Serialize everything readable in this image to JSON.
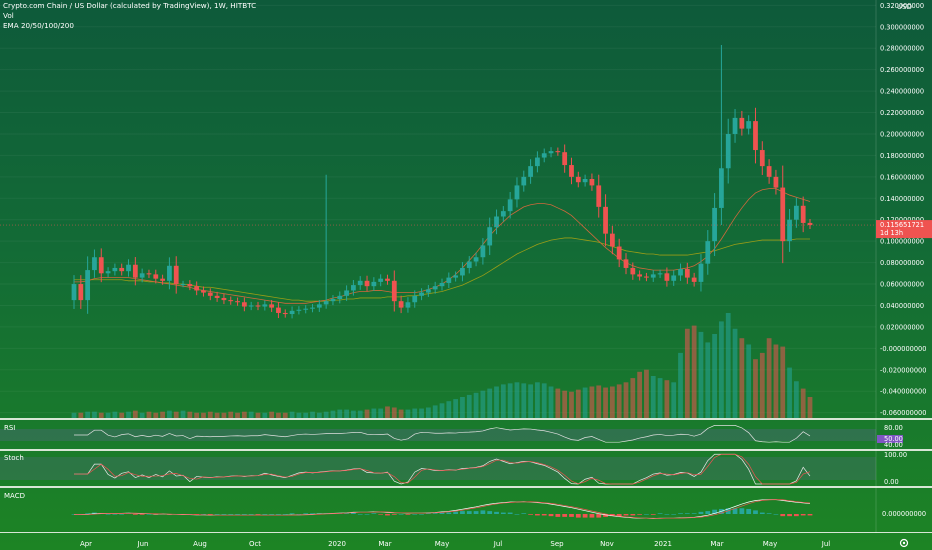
{
  "header": {
    "symbol_line": "Crypto.com Chain / US Dollar (calculated by TradingView), 1W, HITBTC",
    "vol_label": "Vol",
    "ema_label": "EMA 20/50/100/200"
  },
  "price_axis": {
    "currency": "USD",
    "labels": [
      "0.320000000",
      "0.300000000",
      "0.280000000",
      "0.260000000",
      "0.240000000",
      "0.220000000",
      "0.200000000",
      "0.180000000",
      "0.160000000",
      "0.140000000",
      "0.120000000",
      "0.100000000",
      "0.080000000",
      "0.060000000",
      "0.040000000",
      "0.020000000",
      "-0.000000000",
      "-0.020000000",
      "-0.040000000",
      "-0.060000000"
    ],
    "current_price_label": "0.115651721",
    "countdown_label": "1d 13h"
  },
  "panes": {
    "rsi": {
      "label": "RSI",
      "ticks": [
        "80.00",
        "50.00",
        "40.00"
      ]
    },
    "stoch": {
      "label": "Stoch",
      "ticks": [
        "100.00",
        "0.00"
      ]
    },
    "macd": {
      "label": "MACD",
      "ticks": [
        "0.000000000"
      ]
    }
  },
  "time_axis": {
    "labels": [
      "Apr",
      "Jun",
      "Aug",
      "Oct",
      "2020",
      "Mar",
      "May",
      "Jul",
      "Sep",
      "Nov",
      "2021",
      "Mar",
      "May",
      "Jul"
    ]
  },
  "colors": {
    "up": "#26a69a",
    "down": "#ef5350",
    "ema_slow": "#9a9d17",
    "ema_fast": "#d0693c"
  },
  "chart_data": {
    "type": "candlestick",
    "timeframe": "1W",
    "ylim": [
      -0.065,
      0.325
    ],
    "closes": [
      0.06,
      0.045,
      0.073,
      0.085,
      0.07,
      0.072,
      0.075,
      0.072,
      0.078,
      0.066,
      0.07,
      0.069,
      0.065,
      0.063,
      0.077,
      0.06,
      0.06,
      0.058,
      0.054,
      0.052,
      0.049,
      0.047,
      0.045,
      0.044,
      0.043,
      0.039,
      0.04,
      0.039,
      0.041,
      0.038,
      0.033,
      0.032,
      0.035,
      0.036,
      0.037,
      0.038,
      0.041,
      0.044,
      0.046,
      0.049,
      0.054,
      0.059,
      0.063,
      0.058,
      0.062,
      0.065,
      0.063,
      0.044,
      0.038,
      0.043,
      0.049,
      0.052,
      0.055,
      0.058,
      0.061,
      0.066,
      0.068,
      0.075,
      0.081,
      0.085,
      0.096,
      0.113,
      0.123,
      0.128,
      0.139,
      0.152,
      0.16,
      0.17,
      0.178,
      0.182,
      0.184,
      0.183,
      0.171,
      0.16,
      0.155,
      0.158,
      0.152,
      0.132,
      0.107,
      0.095,
      0.083,
      0.075,
      0.069,
      0.067,
      0.066,
      0.069,
      0.07,
      0.063,
      0.068,
      0.074,
      0.066,
      0.062,
      0.079,
      0.1,
      0.131,
      0.168,
      0.2,
      0.215,
      0.205,
      0.212,
      0.185,
      0.17,
      0.16,
      0.15,
      0.1,
      0.12,
      0.133,
      0.117,
      0.115
    ],
    "ema_fast_approx": [
      0.062,
      0.062,
      0.063,
      0.065,
      0.066,
      0.066,
      0.066,
      0.066,
      0.066,
      0.065,
      0.064,
      0.063,
      0.062,
      0.061,
      0.06,
      0.059,
      0.058,
      0.057,
      0.055,
      0.054,
      0.053,
      0.052,
      0.051,
      0.05,
      0.049,
      0.048,
      0.047,
      0.046,
      0.045,
      0.044,
      0.043,
      0.042,
      0.042,
      0.042,
      0.042,
      0.043,
      0.044,
      0.045,
      0.047,
      0.048,
      0.05,
      0.052,
      0.053,
      0.053,
      0.054,
      0.054,
      0.053,
      0.052,
      0.052,
      0.052,
      0.052,
      0.053,
      0.055,
      0.057,
      0.06,
      0.064,
      0.069,
      0.075,
      0.082,
      0.089,
      0.097,
      0.105,
      0.112,
      0.118,
      0.124,
      0.128,
      0.132,
      0.134,
      0.135,
      0.135,
      0.134,
      0.131,
      0.128,
      0.124,
      0.118,
      0.112,
      0.106,
      0.1,
      0.094,
      0.089,
      0.084,
      0.08,
      0.077,
      0.075,
      0.074,
      0.073,
      0.073,
      0.073,
      0.073,
      0.074,
      0.075,
      0.077,
      0.081,
      0.086,
      0.093,
      0.102,
      0.112,
      0.122,
      0.131,
      0.139,
      0.145,
      0.148,
      0.149,
      0.149,
      0.146,
      0.143,
      0.141,
      0.139,
      0.137
    ],
    "ema_slow_approx": [
      0.064,
      0.064,
      0.064,
      0.064,
      0.064,
      0.064,
      0.064,
      0.064,
      0.063,
      0.063,
      0.063,
      0.062,
      0.062,
      0.061,
      0.061,
      0.06,
      0.06,
      0.059,
      0.058,
      0.057,
      0.057,
      0.056,
      0.055,
      0.054,
      0.053,
      0.052,
      0.051,
      0.05,
      0.049,
      0.048,
      0.047,
      0.046,
      0.045,
      0.045,
      0.044,
      0.044,
      0.044,
      0.044,
      0.045,
      0.045,
      0.046,
      0.046,
      0.047,
      0.047,
      0.047,
      0.047,
      0.048,
      0.048,
      0.048,
      0.049,
      0.049,
      0.05,
      0.051,
      0.052,
      0.053,
      0.055,
      0.057,
      0.059,
      0.062,
      0.065,
      0.068,
      0.072,
      0.076,
      0.08,
      0.084,
      0.088,
      0.091,
      0.094,
      0.097,
      0.099,
      0.101,
      0.102,
      0.103,
      0.103,
      0.102,
      0.101,
      0.1,
      0.099,
      0.097,
      0.095,
      0.093,
      0.091,
      0.09,
      0.089,
      0.088,
      0.088,
      0.087,
      0.087,
      0.087,
      0.087,
      0.087,
      0.088,
      0.089,
      0.09,
      0.091,
      0.093,
      0.095,
      0.097,
      0.098,
      0.099,
      0.1,
      0.101,
      0.101,
      0.101,
      0.101,
      0.101,
      0.102,
      0.102,
      0.102
    ],
    "volume_rel": [
      0.05,
      0.05,
      0.06,
      0.06,
      0.05,
      0.05,
      0.06,
      0.05,
      0.06,
      0.07,
      0.05,
      0.06,
      0.05,
      0.06,
      0.07,
      0.06,
      0.07,
      0.06,
      0.05,
      0.05,
      0.06,
      0.05,
      0.05,
      0.06,
      0.05,
      0.06,
      0.06,
      0.05,
      0.05,
      0.06,
      0.05,
      0.05,
      0.06,
      0.05,
      0.05,
      0.06,
      0.05,
      0.06,
      0.07,
      0.08,
      0.08,
      0.07,
      0.07,
      0.08,
      0.09,
      0.09,
      0.11,
      0.1,
      0.08,
      0.08,
      0.09,
      0.09,
      0.1,
      0.12,
      0.14,
      0.16,
      0.18,
      0.2,
      0.22,
      0.24,
      0.26,
      0.28,
      0.3,
      0.32,
      0.33,
      0.34,
      0.33,
      0.32,
      0.34,
      0.33,
      0.3,
      0.28,
      0.26,
      0.25,
      0.27,
      0.29,
      0.3,
      0.31,
      0.29,
      0.3,
      0.32,
      0.34,
      0.38,
      0.44,
      0.46,
      0.4,
      0.38,
      0.36,
      0.34,
      0.62,
      0.85,
      0.88,
      0.82,
      0.72,
      0.8,
      0.92,
      1.0,
      0.85,
      0.76,
      0.7,
      0.56,
      0.62,
      0.76,
      0.7,
      0.68,
      0.48,
      0.35,
      0.28,
      0.2
    ],
    "rsi_range": [
      0,
      100
    ],
    "stoch_range": [
      0,
      100
    ]
  }
}
